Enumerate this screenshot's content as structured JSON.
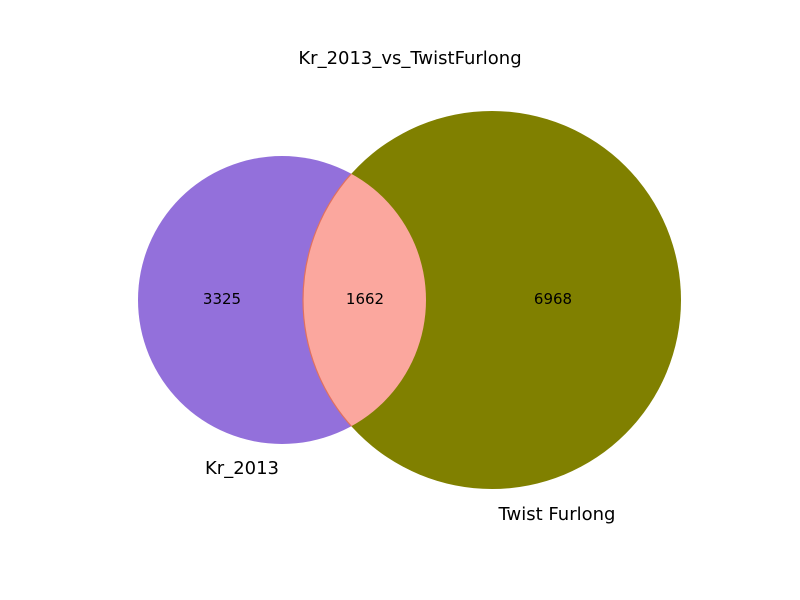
{
  "title": "Kr_2013_vs_TwistFurlong",
  "sets": [
    {
      "label": "Kr_2013",
      "color": "#9370db"
    },
    {
      "label": "Twist Furlong",
      "color": "#808000"
    }
  ],
  "intersection_color": "#fba79e",
  "counts": {
    "only_a": "3325",
    "both": "1662",
    "only_b": "6968"
  }
}
